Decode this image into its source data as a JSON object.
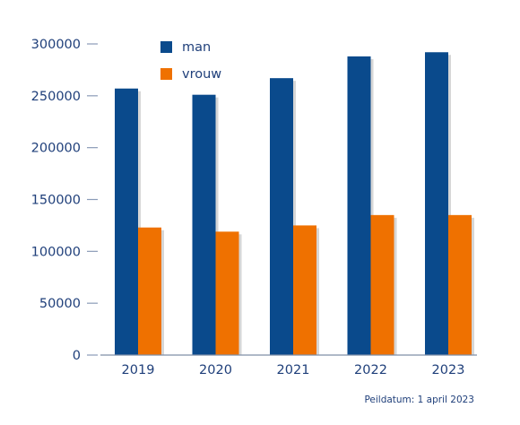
{
  "chart_data": {
    "type": "bar",
    "categories": [
      "2019",
      "2020",
      "2021",
      "2022",
      "2023"
    ],
    "series": [
      {
        "name": "man",
        "color": "#0a4a8c",
        "values": [
          257000,
          251000,
          267000,
          288000,
          292000
        ]
      },
      {
        "name": "vrouw",
        "color": "#ef7100",
        "values": [
          123000,
          119000,
          125000,
          135000,
          135000
        ]
      }
    ],
    "ylim": [
      0,
      300000
    ],
    "yticks": [
      0,
      50000,
      100000,
      150000,
      200000,
      250000,
      300000
    ],
    "grid": false,
    "legend": "top-left",
    "shadow_color": "#d6d6d6",
    "text_color": "#1f3f7a"
  },
  "footnote": "Peildatum: 1 april 2023"
}
